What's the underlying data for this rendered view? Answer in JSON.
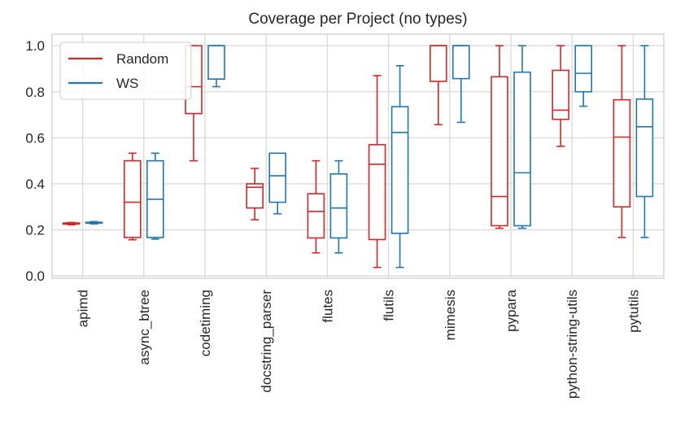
{
  "chart_data": {
    "type": "box",
    "title": "Coverage per Project (no types)",
    "xlabel": "",
    "ylabel": "",
    "ylim": [
      -0.01,
      1.05
    ],
    "yticks": [
      "0.0",
      "0.2",
      "0.4",
      "0.6",
      "0.8",
      "1.0"
    ],
    "grid": true,
    "legend_position": "top-left",
    "categories": [
      "apimd",
      "async_btree",
      "codetiming",
      "docstring_parser",
      "flutes",
      "flutils",
      "mimesis",
      "pypara",
      "python-string-utils",
      "pytutils"
    ],
    "series": [
      {
        "name": "Random",
        "color": "#d62728",
        "boxes": [
          {
            "whislo": 0.222,
            "q1": 0.225,
            "med": 0.228,
            "q3": 0.23,
            "whishi": 0.232
          },
          {
            "whislo": 0.157,
            "q1": 0.167,
            "med": 0.32,
            "q3": 0.5,
            "whishi": 0.533
          },
          {
            "whislo": 0.5,
            "q1": 0.705,
            "med": 0.822,
            "q3": 1.0,
            "whishi": 1.0
          },
          {
            "whislo": 0.244,
            "q1": 0.295,
            "med": 0.385,
            "q3": 0.4,
            "whishi": 0.467
          },
          {
            "whislo": 0.1,
            "q1": 0.165,
            "med": 0.28,
            "q3": 0.357,
            "whishi": 0.5
          },
          {
            "whislo": 0.037,
            "q1": 0.158,
            "med": 0.485,
            "q3": 0.57,
            "whishi": 0.87
          },
          {
            "whislo": 0.657,
            "q1": 0.845,
            "med": 1.0,
            "q3": 1.0,
            "whishi": 1.0
          },
          {
            "whislo": 0.207,
            "q1": 0.218,
            "med": 0.345,
            "q3": 0.865,
            "whishi": 1.0
          },
          {
            "whislo": 0.563,
            "q1": 0.68,
            "med": 0.72,
            "q3": 0.893,
            "whishi": 1.0
          },
          {
            "whislo": 0.167,
            "q1": 0.3,
            "med": 0.603,
            "q3": 0.765,
            "whishi": 1.0
          }
        ]
      },
      {
        "name": "WS",
        "color": "#1f77b4",
        "boxes": [
          {
            "whislo": 0.226,
            "q1": 0.229,
            "med": 0.231,
            "q3": 0.233,
            "whishi": 0.236
          },
          {
            "whislo": 0.16,
            "q1": 0.167,
            "med": 0.333,
            "q3": 0.5,
            "whishi": 0.533
          },
          {
            "whislo": 0.822,
            "q1": 0.855,
            "med": 1.0,
            "q3": 1.0,
            "whishi": 1.0
          },
          {
            "whislo": 0.27,
            "q1": 0.32,
            "med": 0.435,
            "q3": 0.533,
            "whishi": 0.533
          },
          {
            "whislo": 0.1,
            "q1": 0.165,
            "med": 0.295,
            "q3": 0.443,
            "whishi": 0.5
          },
          {
            "whislo": 0.037,
            "q1": 0.185,
            "med": 0.623,
            "q3": 0.735,
            "whishi": 0.913
          },
          {
            "whislo": 0.667,
            "q1": 0.857,
            "med": 1.0,
            "q3": 1.0,
            "whishi": 1.0
          },
          {
            "whislo": 0.207,
            "q1": 0.218,
            "med": 0.448,
            "q3": 0.885,
            "whishi": 1.0
          },
          {
            "whislo": 0.737,
            "q1": 0.8,
            "med": 0.88,
            "q3": 1.0,
            "whishi": 1.0
          },
          {
            "whislo": 0.167,
            "q1": 0.345,
            "med": 0.648,
            "q3": 0.768,
            "whishi": 1.0
          }
        ]
      }
    ]
  }
}
